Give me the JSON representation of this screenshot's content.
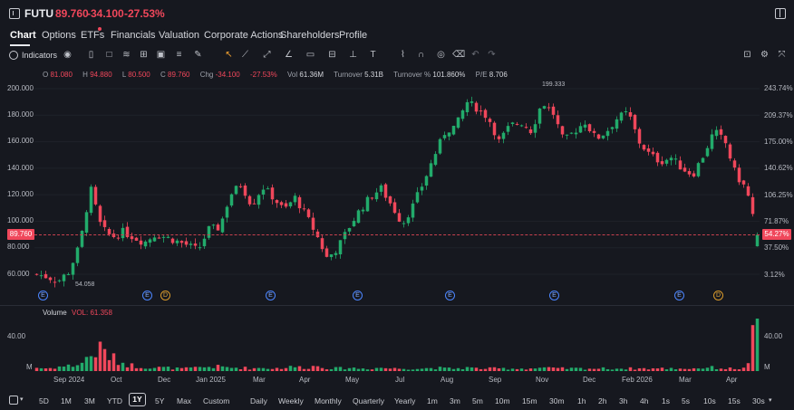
{
  "header": {
    "ticker": "FUTU",
    "price": "89.760",
    "change": "-34.100",
    "change_pct": "-27.53%"
  },
  "tabs": [
    {
      "label": "Chart"
    },
    {
      "label": "Options"
    },
    {
      "label": "ETFs"
    },
    {
      "label": "Financials"
    },
    {
      "label": "Valuation"
    },
    {
      "label": "Corporate Actions"
    },
    {
      "label": "Shareholders"
    },
    {
      "label": "Profile"
    }
  ],
  "toolbar": {
    "indicators_label": "Indicators"
  },
  "ohlc": {
    "o_label": "O",
    "o": "81.080",
    "h_label": "H",
    "h": "94.880",
    "l_label": "L",
    "l": "80.500",
    "c_label": "C",
    "c": "89.760",
    "chg_label": "Chg",
    "chg": "-34.100",
    "chg_pct": "-27.53%",
    "vol_label": "Vol",
    "vol": "61.36M",
    "turnover_label": "Turnover",
    "turnover": "5.31B",
    "turnover_pct_label": "Turnover %",
    "turnover_pct": "101.860%",
    "pe_label": "P/E",
    "pe": "8.706"
  },
  "price_axis": [
    "200.000",
    "180.000",
    "160.000",
    "140.000",
    "120.000",
    "100.000",
    "80.000",
    "60.000"
  ],
  "pct_axis": [
    "243.74%",
    "209.37%",
    "175.00%",
    "140.62%",
    "106.25%",
    "71.87%",
    "37.50%",
    "3.12%"
  ],
  "current_price_tag": "89.760",
  "current_pct_tag": "54.27%",
  "annotations": {
    "high": "199.333",
    "low": "54.058"
  },
  "events": [
    "E",
    "E",
    "D",
    "E",
    "E",
    "E",
    "E",
    "E",
    "D"
  ],
  "volume": {
    "label": "Volume",
    "value": "VOL: 61.358",
    "axis_top": "40.00",
    "axis_m": "M",
    "axis_top_r": "40.00",
    "axis_m_r": "M"
  },
  "x_axis": [
    "Sep 2024",
    "Oct",
    "Dec",
    "Jan 2025",
    "Mar",
    "Apr",
    "May",
    "Jul",
    "Aug",
    "Sep",
    "Nov",
    "Dec",
    "Feb 2026",
    "Mar",
    "Apr"
  ],
  "ranges": [
    "5D",
    "1M",
    "3M",
    "YTD",
    "1Y",
    "5Y",
    "Max",
    "Custom"
  ],
  "selected_range": "1Y",
  "intervals": [
    "Daily",
    "Weekly",
    "Monthly",
    "Quarterly",
    "Yearly",
    "1m",
    "3m",
    "5m",
    "10m",
    "15m",
    "30m",
    "1h",
    "2h",
    "3h",
    "4h",
    "1s",
    "5s",
    "10s",
    "15s",
    "30s"
  ],
  "colors": {
    "up": "#22ab6b",
    "down": "#f0475b",
    "bg": "#16181f"
  },
  "chart_data": {
    "type": "candlestick",
    "price_path_close": [
      60,
      58,
      55,
      62,
      82,
      125,
      95,
      88,
      92,
      88,
      84,
      90,
      88,
      85,
      82,
      78,
      94,
      95,
      120,
      128,
      112,
      126,
      118,
      108,
      118,
      105,
      90,
      72,
      80,
      95,
      108,
      118,
      125,
      112,
      98,
      112,
      130,
      150,
      168,
      172,
      190,
      185,
      178,
      160,
      172,
      175,
      168,
      190,
      182,
      160,
      168,
      175,
      162,
      168,
      178,
      182,
      160,
      150,
      145,
      148,
      140,
      135,
      150,
      168,
      160,
      135,
      124,
      90
    ],
    "volume_path_m": [
      4,
      3,
      5,
      6,
      8,
      18,
      26,
      15,
      10,
      6,
      5,
      4,
      4,
      3,
      3,
      4,
      5,
      5,
      4,
      4,
      3,
      4,
      3,
      4,
      5,
      4,
      6,
      4,
      3,
      4,
      3,
      3,
      4,
      3,
      3,
      3,
      3,
      4,
      3,
      3,
      4,
      3,
      3,
      3,
      3,
      3,
      3,
      4,
      3,
      3,
      3,
      3,
      3,
      3,
      3,
      3,
      3,
      3,
      3,
      3,
      3,
      3,
      4,
      4,
      3,
      3,
      3,
      61.358
    ],
    "ylim": [
      50,
      205
    ],
    "y_ticks": [
      200,
      180,
      160,
      140,
      120,
      100,
      80,
      60
    ],
    "current_price": 89.76,
    "high": 199.333,
    "low": 54.058
  }
}
